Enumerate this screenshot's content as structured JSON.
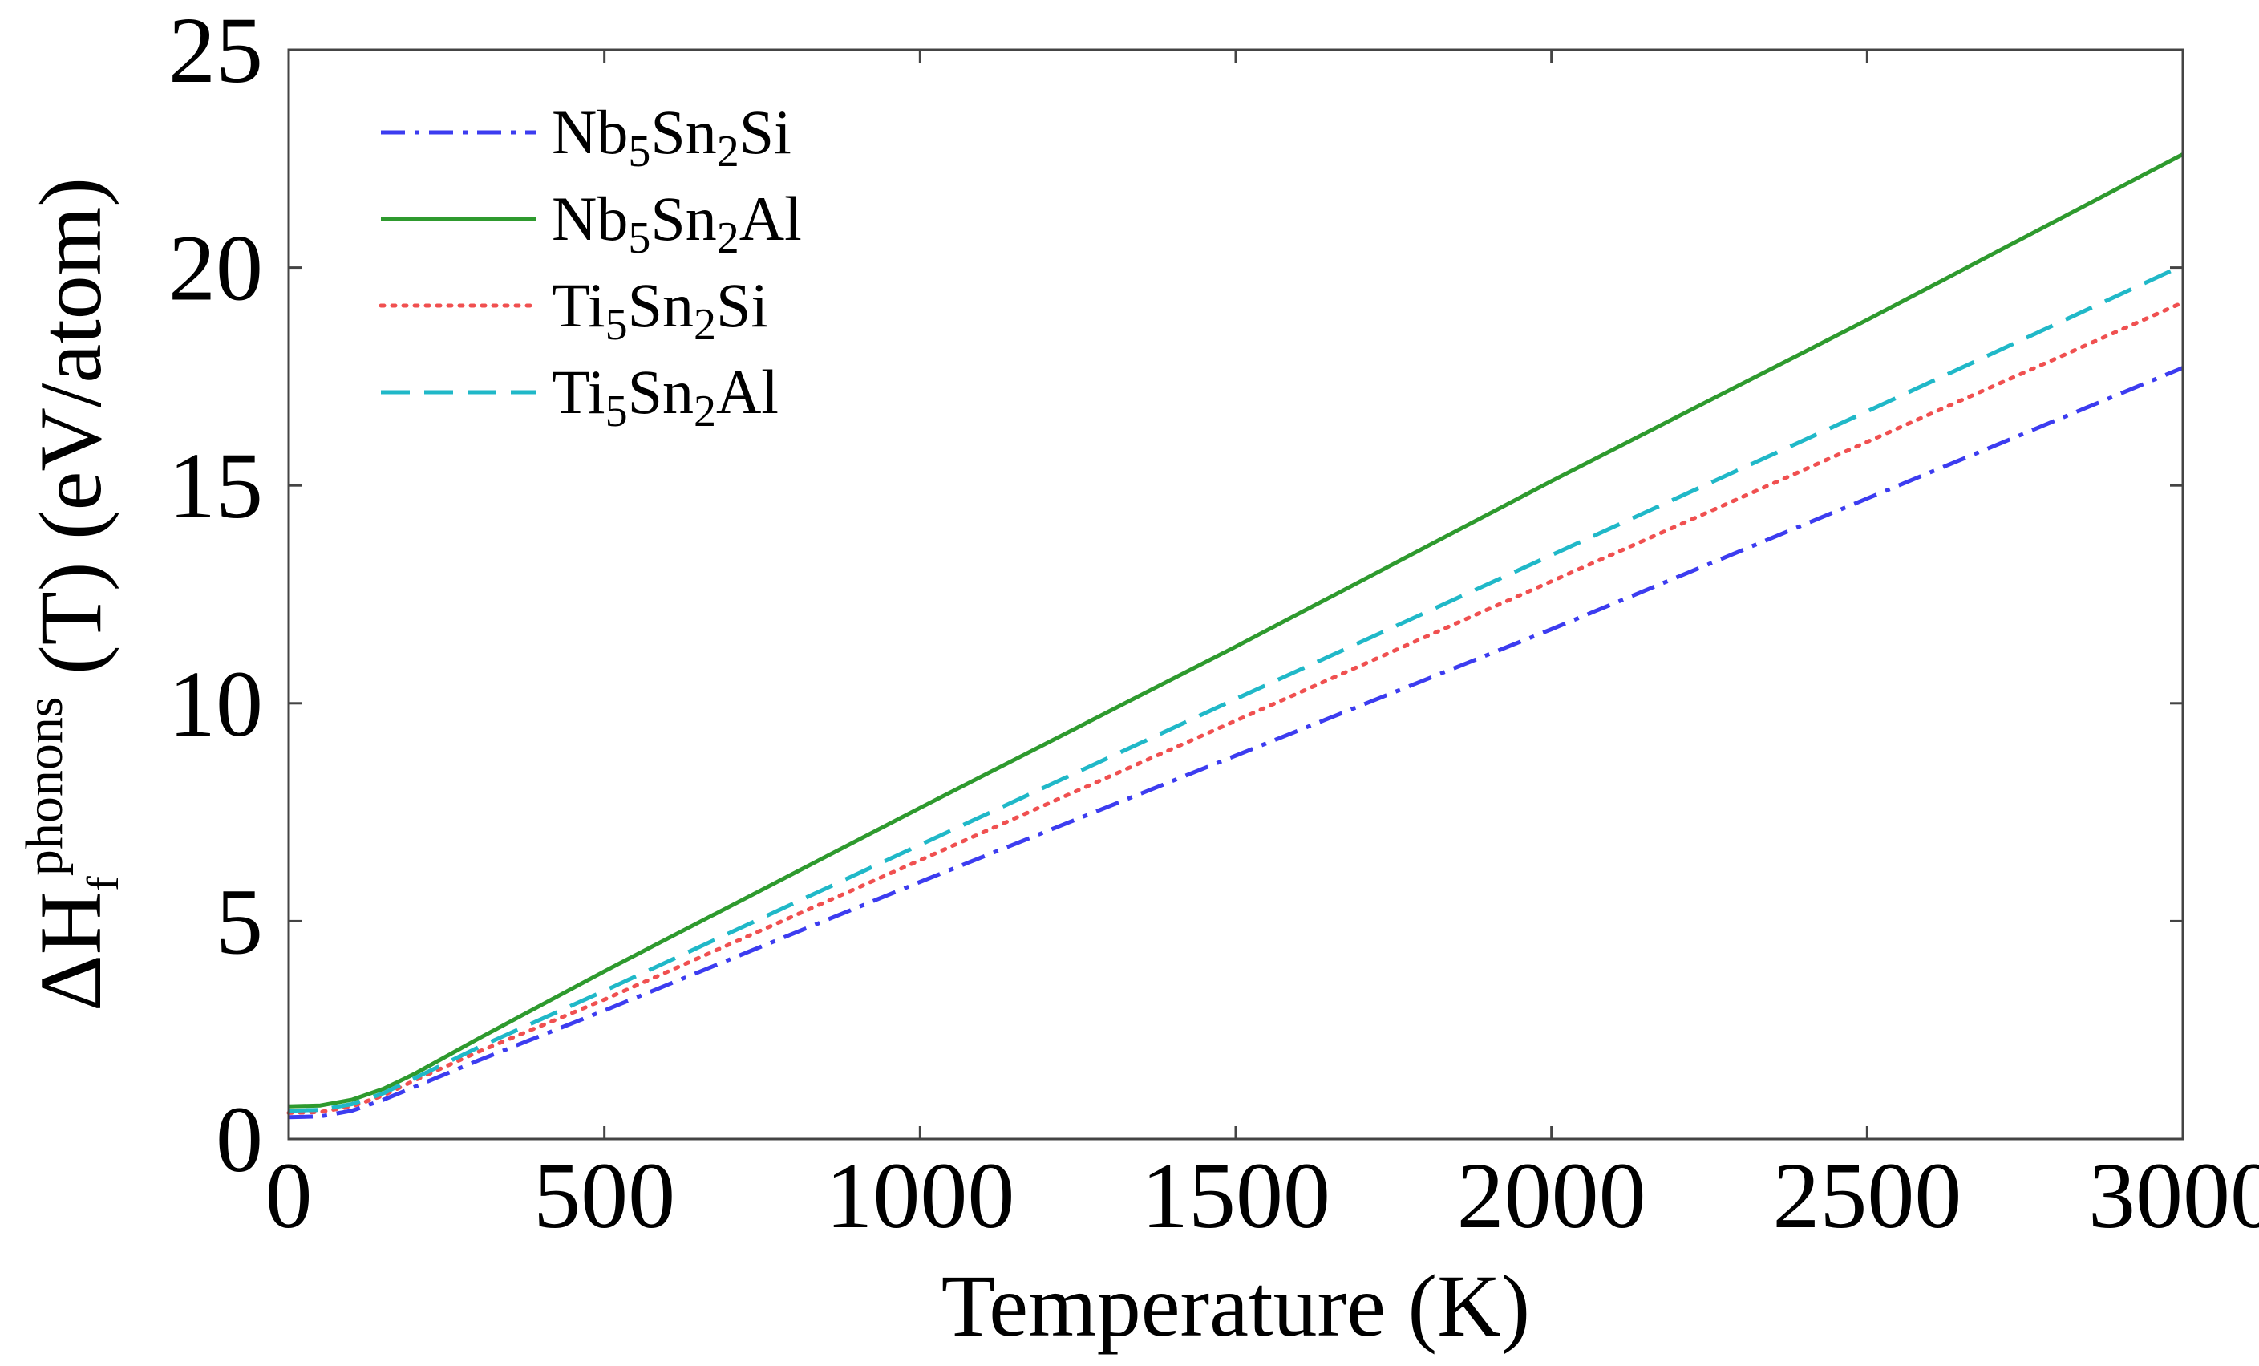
{
  "chart_data": {
    "type": "line",
    "title": "",
    "xlabel": "Temperature (K)",
    "ylabel": {
      "prefix": "ΔH",
      "sub": "f",
      "sup": "phonons",
      "suffix": " (T) (eV/atom)"
    },
    "xlim": [
      0,
      3000
    ],
    "ylim": [
      0,
      25
    ],
    "xticks": [
      0,
      500,
      1000,
      1500,
      2000,
      2500,
      3000
    ],
    "yticks": [
      0,
      5,
      10,
      15,
      20,
      25
    ],
    "grid": false,
    "legend_position": "top-left",
    "series": [
      {
        "name": "Nb5Sn2Si",
        "label_parts": [
          [
            "Nb",
            ""
          ],
          [
            "5",
            "sub"
          ],
          [
            "Sn",
            ""
          ],
          [
            "2",
            "sub"
          ],
          [
            "Si",
            ""
          ]
        ],
        "color": "#3c3cf0",
        "dash": "dashdot",
        "x": [
          0,
          50,
          100,
          150,
          200,
          300,
          500,
          1000,
          1500,
          2000,
          2500,
          3000
        ],
        "y": [
          0.5,
          0.52,
          0.65,
          0.9,
          1.2,
          1.8,
          2.95,
          5.9,
          8.8,
          11.7,
          14.7,
          17.7
        ]
      },
      {
        "name": "Nb5Sn2Al",
        "label_parts": [
          [
            "Nb",
            ""
          ],
          [
            "5",
            "sub"
          ],
          [
            "Sn",
            ""
          ],
          [
            "2",
            "sub"
          ],
          [
            "Al",
            ""
          ]
        ],
        "color": "#2e9a2e",
        "dash": "solid",
        "x": [
          0,
          50,
          100,
          150,
          200,
          300,
          500,
          1000,
          1500,
          2000,
          2500,
          3000
        ],
        "y": [
          0.75,
          0.77,
          0.9,
          1.15,
          1.5,
          2.3,
          3.85,
          7.6,
          11.3,
          15.1,
          18.8,
          22.6
        ]
      },
      {
        "name": "Ti5Sn2Si",
        "label_parts": [
          [
            "Ti",
            ""
          ],
          [
            "5",
            "sub"
          ],
          [
            "Sn",
            ""
          ],
          [
            "2",
            "sub"
          ],
          [
            "Si",
            ""
          ]
        ],
        "color": "#f05050",
        "dash": "dotted",
        "x": [
          0,
          50,
          100,
          150,
          200,
          300,
          500,
          1000,
          1500,
          2000,
          2500,
          3000
        ],
        "y": [
          0.6,
          0.62,
          0.75,
          1.0,
          1.35,
          2.0,
          3.2,
          6.4,
          9.6,
          12.8,
          16.0,
          19.2
        ]
      },
      {
        "name": "Ti5Sn2Al",
        "label_parts": [
          [
            "Ti",
            ""
          ],
          [
            "5",
            "sub"
          ],
          [
            "Sn",
            ""
          ],
          [
            "2",
            "sub"
          ],
          [
            "Al",
            ""
          ]
        ],
        "color": "#20b8c8",
        "dash": "dashed",
        "x": [
          0,
          50,
          100,
          150,
          200,
          300,
          500,
          1000,
          1500,
          2000,
          2500,
          3000
        ],
        "y": [
          0.65,
          0.67,
          0.8,
          1.05,
          1.4,
          2.1,
          3.4,
          6.75,
          10.1,
          13.4,
          16.7,
          20.05
        ]
      }
    ]
  }
}
